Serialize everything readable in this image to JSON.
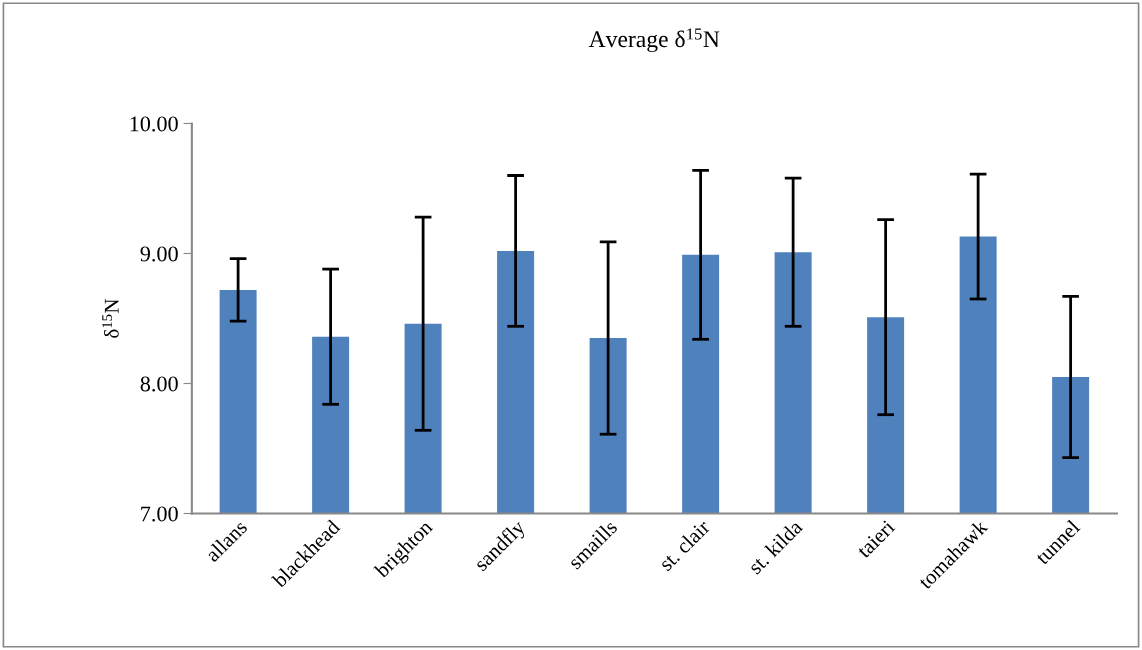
{
  "chart_data": {
    "type": "bar",
    "title": "Average δ$^{15}$N",
    "ylabel": "δ$^{15}$N",
    "categories": [
      "allans",
      "blackhead",
      "brighton",
      "sandfly",
      "smaills",
      "st. clair",
      "st. kilda",
      "taieri",
      "tomahawk",
      "tunnel"
    ],
    "values": [
      8.72,
      8.36,
      8.46,
      9.02,
      8.35,
      8.99,
      9.01,
      8.51,
      9.13,
      8.05
    ],
    "errors": [
      0.24,
      0.52,
      0.82,
      0.58,
      0.74,
      0.65,
      0.57,
      0.75,
      0.48,
      0.62
    ],
    "color": "#4f81bd",
    "ylim": [
      7,
      10
    ],
    "yticks": [
      {
        "value": 7,
        "label": "7.00"
      },
      {
        "value": 8,
        "label": "8.00"
      },
      {
        "value": 9,
        "label": "9.00"
      },
      {
        "value": 10,
        "label": "10.00"
      }
    ],
    "grid": false
  }
}
